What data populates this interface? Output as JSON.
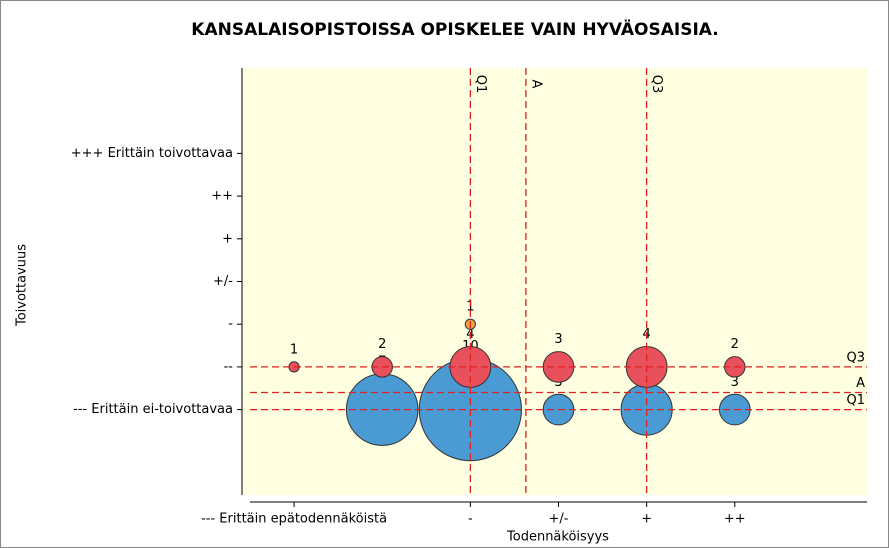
{
  "chart_data": {
    "type": "bubble",
    "title": "KANSALAISOPISTOISSA OPISKELEE VAIN HYVÄOSAISIA.",
    "xlabel": "Todennäköisyys",
    "ylabel": "Toivottavuus",
    "xlim": [
      0.5,
      7.5
    ],
    "ylim": [
      -1,
      9
    ],
    "xticks": [
      {
        "value": 1,
        "label": "--- Erittäin epätodennäköistä"
      },
      {
        "value": 3,
        "label": "-"
      },
      {
        "value": 4,
        "label": "+/-"
      },
      {
        "value": 5,
        "label": "+"
      },
      {
        "value": 6,
        "label": "++"
      }
    ],
    "yticks": [
      {
        "value": 1,
        "label": "--- Erittäin ei-toivottavaa"
      },
      {
        "value": 2,
        "label": "--"
      },
      {
        "value": 3,
        "label": "-"
      },
      {
        "value": 4,
        "label": "+/-"
      },
      {
        "value": 5,
        "label": "+"
      },
      {
        "value": 6,
        "label": "++"
      },
      {
        "value": 7,
        "label": "+++ Erittäin toivottavaa"
      }
    ],
    "vlines": [
      {
        "label": "Q1",
        "value": 3
      },
      {
        "label": "A",
        "value": 3.63
      },
      {
        "label": "Q3",
        "value": 5
      }
    ],
    "hlines": [
      {
        "label": "Q3",
        "value": 2
      },
      {
        "label": "A",
        "value": 1.4
      },
      {
        "label": "Q1",
        "value": 1
      }
    ],
    "series": [
      {
        "color": "#4a9bd4",
        "x": [
          2,
          3,
          4,
          5,
          6
        ],
        "values": [
          1,
          1,
          1,
          1,
          1
        ],
        "sizes": [
          7,
          10,
          3,
          5,
          3
        ]
      },
      {
        "color": "#e8505b",
        "x": [
          1,
          2,
          3,
          4,
          5,
          6
        ],
        "values": [
          2,
          2,
          2,
          2,
          2,
          2
        ],
        "sizes": [
          1,
          2,
          4,
          3,
          4,
          2
        ]
      },
      {
        "color": "#f0a040",
        "x": [
          3
        ],
        "values": [
          3
        ],
        "sizes": [
          1
        ]
      }
    ]
  }
}
